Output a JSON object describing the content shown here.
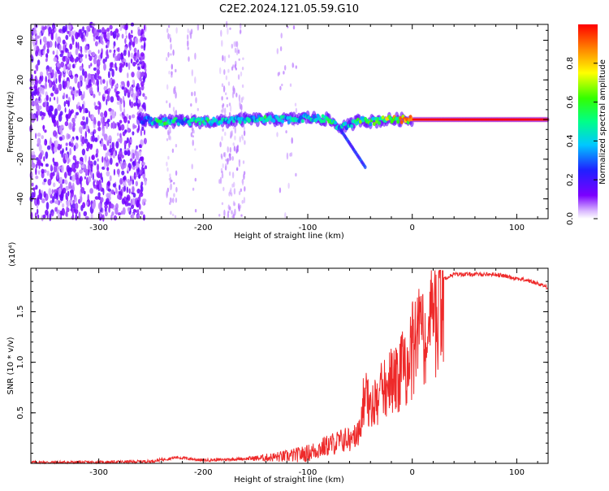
{
  "title": "C2E2.2024.121.05.59.G10",
  "colors": {
    "snr_line": "#ee2a2a",
    "spectrum_low": "#7b00ff",
    "spectrum_high": "#ff0000"
  },
  "chart_data": [
    {
      "type": "heatmap",
      "xlabel": "Height of straight line (km)",
      "ylabel": "Frequency (Hz)",
      "xlim": [
        -365,
        130
      ],
      "ylim": [
        -50,
        48
      ],
      "xticks": [
        -300,
        -200,
        -100,
        0,
        100
      ],
      "yticks": [
        -40,
        -20,
        0,
        20,
        40
      ],
      "colorbar": {
        "label": "Normalized spectral amplitude",
        "range": [
          0.0,
          1.0
        ],
        "ticks": [
          0.0,
          0.2,
          0.4,
          0.6,
          0.8
        ],
        "colormap": "rainbow (violet to red)"
      },
      "ridge": {
        "description_points_km_hz_amp": [
          [
            -260,
            0,
            0.25
          ],
          [
            -240,
            -1,
            0.55
          ],
          [
            -220,
            -1,
            0.4
          ],
          [
            -200,
            -1,
            0.6
          ],
          [
            -180,
            -1,
            0.45
          ],
          [
            -160,
            0,
            0.4
          ],
          [
            -140,
            0,
            0.5
          ],
          [
            -120,
            0,
            0.45
          ],
          [
            -100,
            1,
            0.4
          ],
          [
            -80,
            0,
            0.55
          ],
          [
            -70,
            -4,
            0.5
          ],
          [
            -60,
            -3,
            0.4
          ],
          [
            -50,
            0,
            0.6
          ],
          [
            -40,
            -1,
            0.55
          ],
          [
            -20,
            0,
            0.7
          ],
          [
            0,
            0,
            0.85
          ],
          [
            40,
            0,
            0.95
          ],
          [
            80,
            0,
            1.0
          ],
          [
            130,
            0,
            0.95
          ]
        ]
      },
      "noise_region_km": [
        -365,
        -255
      ]
    },
    {
      "type": "line",
      "xlabel": "Height of straight line (km)",
      "ylabel": "SNR (10 * v/v)",
      "y_multiplier": "(x10⁴)",
      "xlim": [
        -365,
        130
      ],
      "ylim": [
        0,
        1.93
      ],
      "xticks": [
        -300,
        -200,
        -100,
        0,
        100
      ],
      "yticks": [
        0.5,
        1.0,
        1.5
      ],
      "ytick_labels": [
        "0.5",
        "1.0",
        "1.5"
      ],
      "series": [
        {
          "x": [
            -365,
            -300,
            -250,
            -225,
            -200,
            -150,
            -120,
            -100,
            -80,
            -60,
            -50,
            -45,
            -40,
            -30,
            -20,
            -10,
            0,
            10,
            20,
            30,
            40,
            60,
            80,
            90,
            100,
            110,
            120,
            130
          ],
          "y": [
            0.01,
            0.01,
            0.02,
            0.06,
            0.03,
            0.05,
            0.07,
            0.1,
            0.18,
            0.25,
            0.4,
            0.9,
            0.6,
            0.85,
            1.0,
            1.15,
            1.35,
            1.55,
            1.75,
            1.83,
            1.87,
            1.87,
            1.87,
            1.85,
            1.83,
            1.81,
            1.78,
            1.74
          ]
        }
      ]
    }
  ]
}
